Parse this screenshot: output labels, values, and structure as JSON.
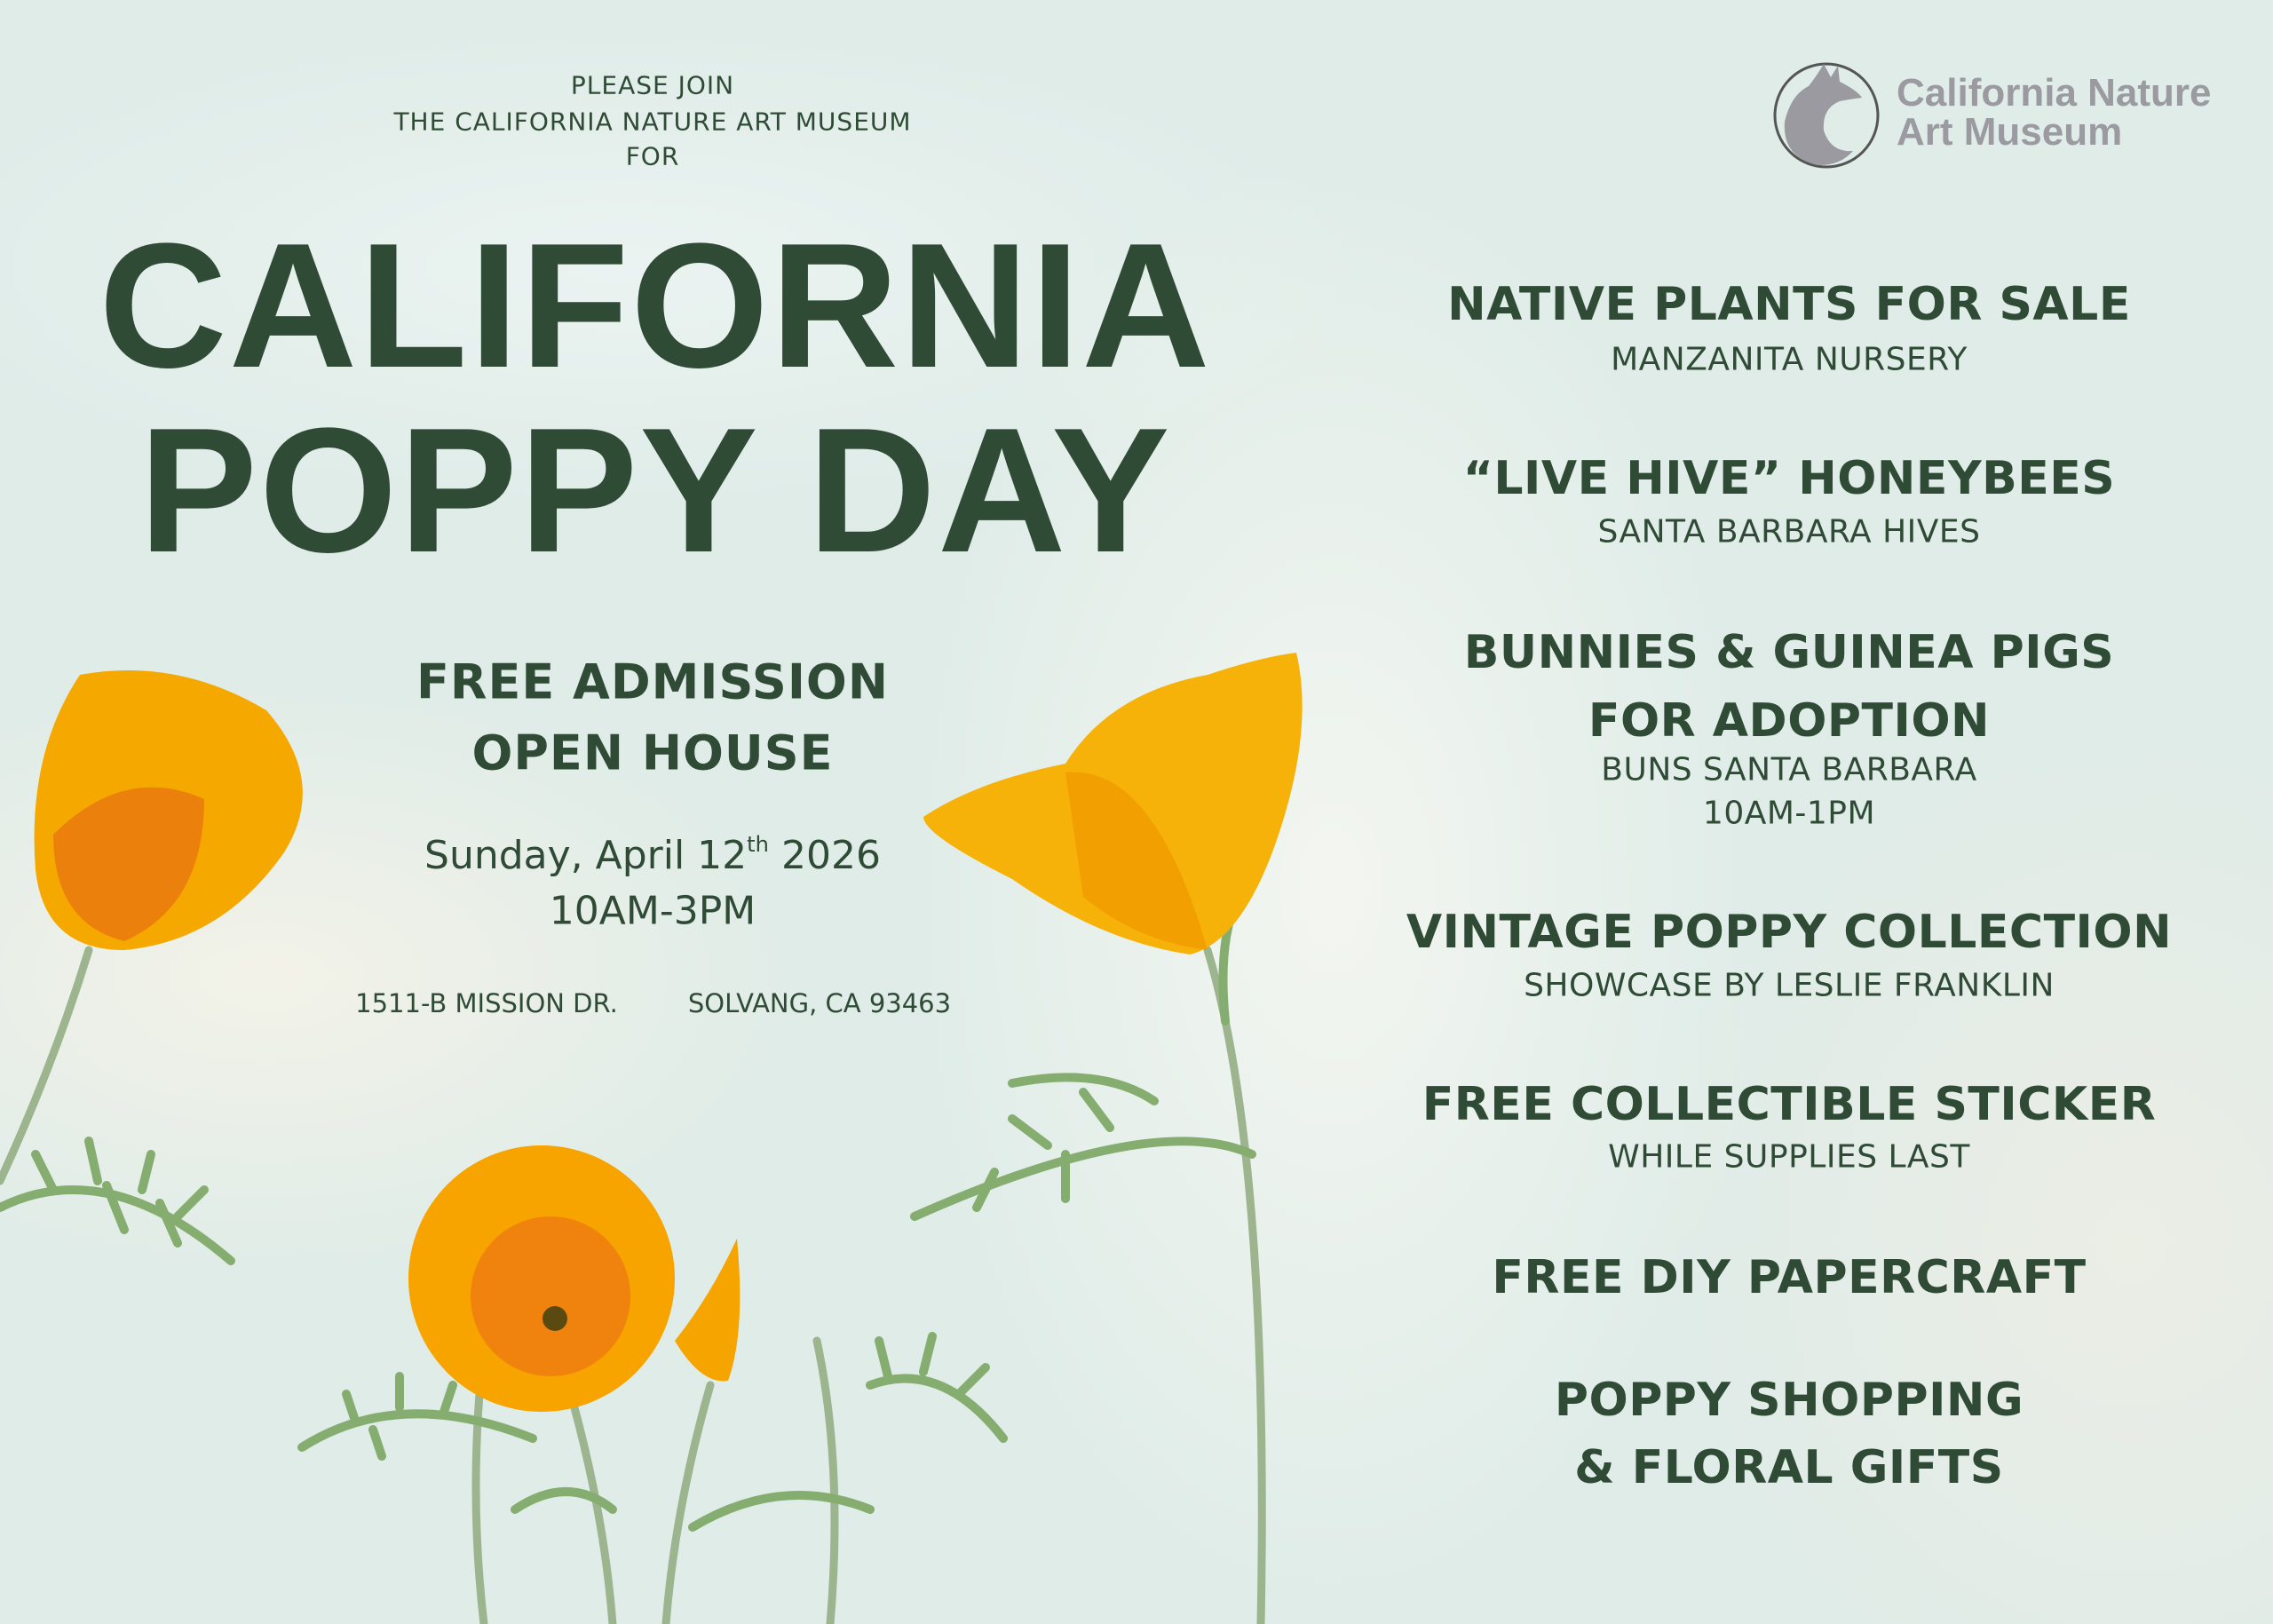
{
  "logo": {
    "line1": "California Nature",
    "line2": "Art Museum",
    "color": "#9a9aa0",
    "icon": "fox-circle-icon"
  },
  "intro": [
    "PLEASE JOIN",
    "THE CALIFORNIA NATURE ART MUSEUM",
    "FOR"
  ],
  "title": {
    "line1": "CALIFORNIA",
    "line2": "POPPY DAY"
  },
  "admission": {
    "line1": "FREE ADMISSION",
    "line2": "OPEN HOUSE"
  },
  "date": {
    "day": "Sunday, April 12",
    "suffix": "th",
    "year": " 2026",
    "time": "10AM-3PM"
  },
  "address": {
    "street": "1511-B MISSION DR.",
    "city": "SOLVANG, CA 93463"
  },
  "events": [
    {
      "title": "NATIVE PLANTS FOR SALE",
      "sub": "MANZANITA NURSERY"
    },
    {
      "title": "“LIVE HIVE” HONEYBEES",
      "sub": "SANTA BARBARA HIVES"
    },
    {
      "title": "BUNNIES & GUINEA PIGS",
      "title2": "FOR ADOPTION",
      "sub": "BUNS SANTA BARBARA",
      "sub2": "10AM-1PM"
    },
    {
      "title": "VINTAGE POPPY COLLECTION",
      "sub": "SHOWCASE BY LESLIE FRANKLIN"
    },
    {
      "title": "FREE COLLECTIBLE STICKER",
      "sub": "WHILE SUPPLIES LAST"
    },
    {
      "title": "FREE DIY PAPERCRAFT"
    },
    {
      "title": "POPPY SHOPPING",
      "title2": "& FLORAL GIFTS"
    }
  ],
  "colors": {
    "text": "#2f4b36",
    "background": "#dfece8",
    "poppy": "#f5a500",
    "poppy_center": "#e86a10",
    "stem": "#7fa36a"
  }
}
